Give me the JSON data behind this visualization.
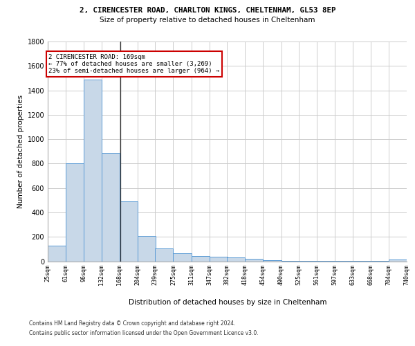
{
  "title1": "2, CIRENCESTER ROAD, CHARLTON KINGS, CHELTENHAM, GL53 8EP",
  "title2": "Size of property relative to detached houses in Cheltenham",
  "xlabel": "Distribution of detached houses by size in Cheltenham",
  "ylabel": "Number of detached properties",
  "footnote1": "Contains HM Land Registry data © Crown copyright and database right 2024.",
  "footnote2": "Contains public sector information licensed under the Open Government Licence v3.0.",
  "annotation_line1": "2 CIRENCESTER ROAD: 169sqm",
  "annotation_line2": "← 77% of detached houses are smaller (3,269)",
  "annotation_line3": "23% of semi-detached houses are larger (964) →",
  "property_size": 169,
  "bin_edges": [
    25,
    61,
    96,
    132,
    168,
    204,
    239,
    275,
    311,
    347,
    382,
    418,
    454,
    490,
    525,
    561,
    597,
    633,
    668,
    704,
    740
  ],
  "bar_heights": [
    125,
    800,
    1490,
    885,
    490,
    205,
    105,
    65,
    45,
    35,
    30,
    20,
    10,
    5,
    3,
    2,
    2,
    1,
    1,
    15
  ],
  "bar_color": "#c8d8e8",
  "bar_edge_color": "#5b9bd5",
  "vline_color": "#333333",
  "annotation_box_edgecolor": "#cc0000",
  "background_color": "#ffffff",
  "grid_color": "#cccccc",
  "ylim": [
    0,
    1800
  ],
  "yticks": [
    0,
    200,
    400,
    600,
    800,
    1000,
    1200,
    1400,
    1600,
    1800
  ]
}
